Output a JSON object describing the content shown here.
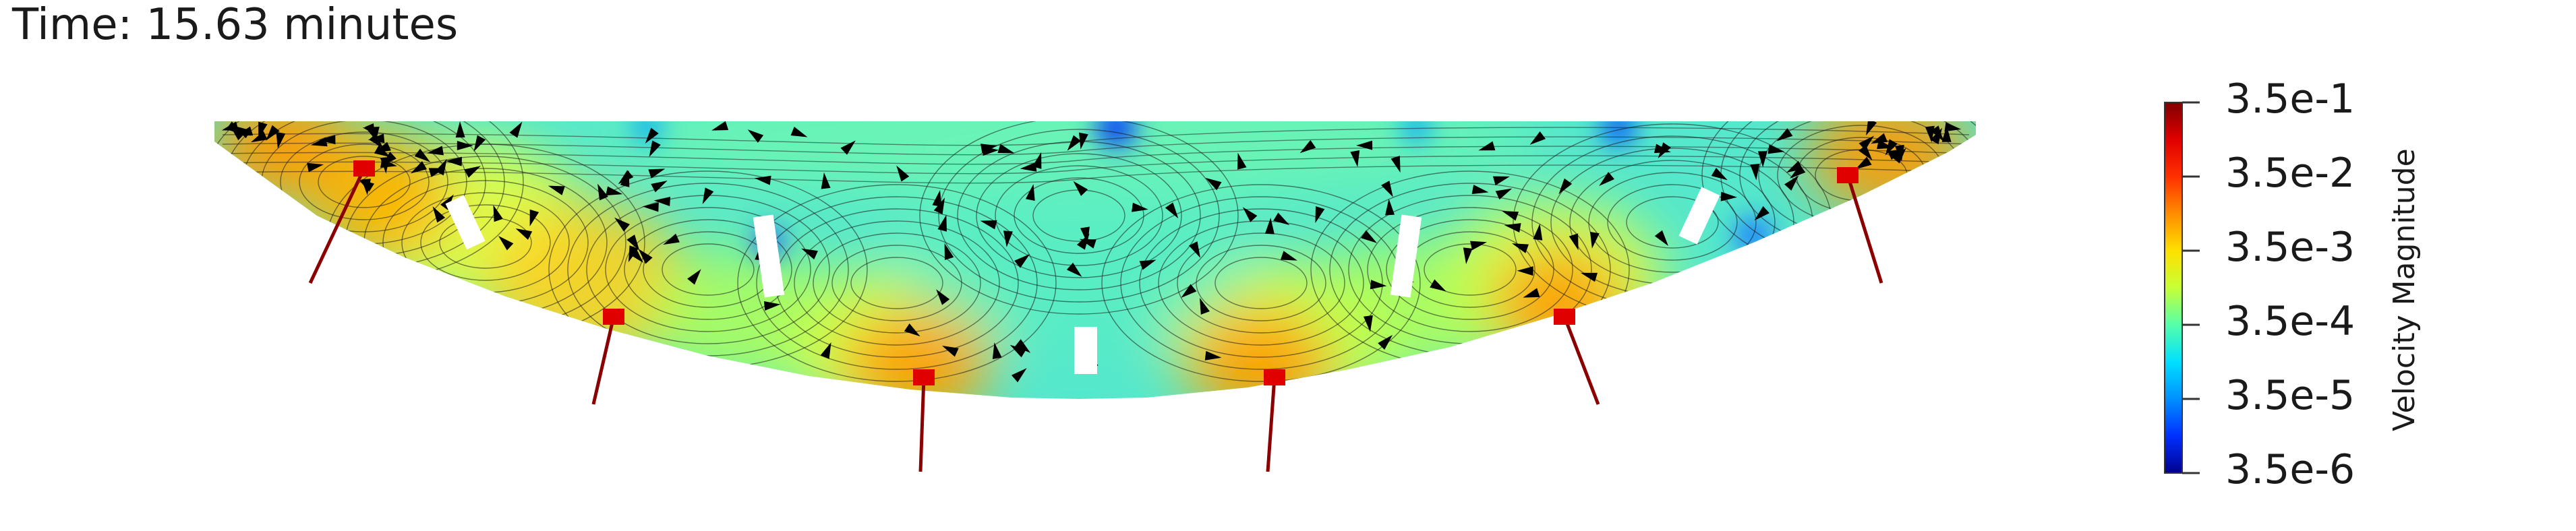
{
  "time": {
    "text": "Time: 15.63 minutes"
  },
  "colorbar": {
    "title": "Velocity Magnitude",
    "ticks": [
      "3.5e-1",
      "3.5e-2",
      "3.5e-3",
      "3.5e-4",
      "3.5e-5",
      "3.5e-6"
    ],
    "colormap": [
      "#7f0000",
      "#e00000",
      "#ff3000",
      "#ff8c00",
      "#ffe000",
      "#c8ff36",
      "#55ffaa",
      "#00e0ff",
      "#0090ff",
      "#0030ff",
      "#00008f"
    ],
    "scale": "log"
  },
  "scene": {
    "background": "#ffffff",
    "field_base_color": "#55e8cc",
    "jet_color": "#8b0000",
    "streamline_color": "#1a1a1a",
    "arrow_color": "#000000"
  }
}
